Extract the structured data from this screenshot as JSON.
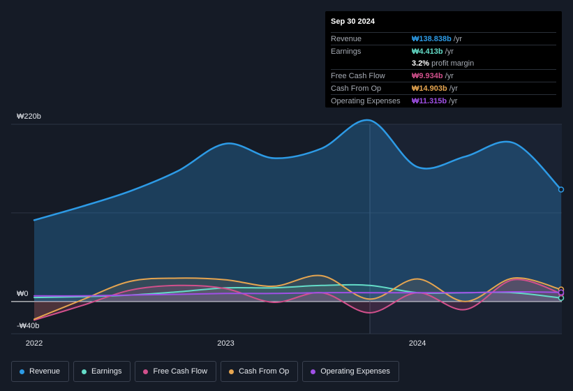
{
  "tooltip": {
    "date": "Sep 30 2024",
    "rows": [
      {
        "name": "Revenue",
        "value": "₩138.838b",
        "unit": "/yr",
        "color": "#2d9be6"
      },
      {
        "name": "Earnings",
        "value": "₩4.413b",
        "unit": "/yr",
        "color": "#64dcc8"
      },
      {
        "name": "",
        "value": "3.2%",
        "unit": "profit margin",
        "color": "#ffffff"
      },
      {
        "name": "Free Cash Flow",
        "value": "₩9.934b",
        "unit": "/yr",
        "color": "#d2508c"
      },
      {
        "name": "Cash From Op",
        "value": "₩14.903b",
        "unit": "/yr",
        "color": "#e6a550"
      },
      {
        "name": "Operating Expenses",
        "value": "₩11.315b",
        "unit": "/yr",
        "color": "#a050e6"
      }
    ]
  },
  "chart_data": {
    "type": "area",
    "y_axis_labels": {
      "top": "₩220b",
      "zero": "₩0",
      "bottom": "-₩40b"
    },
    "ylim": [
      -40,
      220
    ],
    "xlim": [
      2021.9,
      2024.75
    ],
    "x_ticks": [
      {
        "label": "2022",
        "value": 2022.0
      },
      {
        "label": "2023",
        "value": 2023.0
      },
      {
        "label": "2024",
        "value": 2024.0
      }
    ],
    "x": [
      2022.0,
      2022.25,
      2022.5,
      2022.75,
      2023.0,
      2023.25,
      2023.5,
      2023.75,
      2024.0,
      2024.25,
      2024.5,
      2024.75
    ],
    "series": [
      {
        "name": "Revenue",
        "color": "#2d9be6",
        "values": [
          101,
          118,
          137,
          162,
          196,
          178,
          190,
          225,
          167,
          180,
          197,
          139
        ]
      },
      {
        "name": "Earnings",
        "color": "#64dcc8",
        "values": [
          5,
          6,
          8,
          12,
          17,
          17,
          20,
          20,
          11,
          11,
          11,
          4.4
        ]
      },
      {
        "name": "Free Cash Flow",
        "color": "#d2508c",
        "values": [
          -23,
          -5,
          14,
          20,
          16,
          -1,
          11,
          -14,
          11,
          -10,
          27,
          9.9
        ]
      },
      {
        "name": "Cash From Op",
        "color": "#e6a550",
        "values": [
          -22,
          2,
          25,
          29,
          27,
          19,
          32,
          3,
          28,
          0,
          29,
          14.9
        ]
      },
      {
        "name": "Operating Expenses",
        "color": "#a050e6",
        "values": [
          7,
          7,
          8,
          9,
          10,
          10,
          11,
          11,
          11,
          11,
          12,
          11.3
        ]
      }
    ]
  },
  "legend": [
    {
      "label": "Revenue",
      "color": "#2d9be6"
    },
    {
      "label": "Earnings",
      "color": "#64dcc8"
    },
    {
      "label": "Free Cash Flow",
      "color": "#d2508c"
    },
    {
      "label": "Cash From Op",
      "color": "#e6a550"
    },
    {
      "label": "Operating Expenses",
      "color": "#a050e6"
    }
  ]
}
